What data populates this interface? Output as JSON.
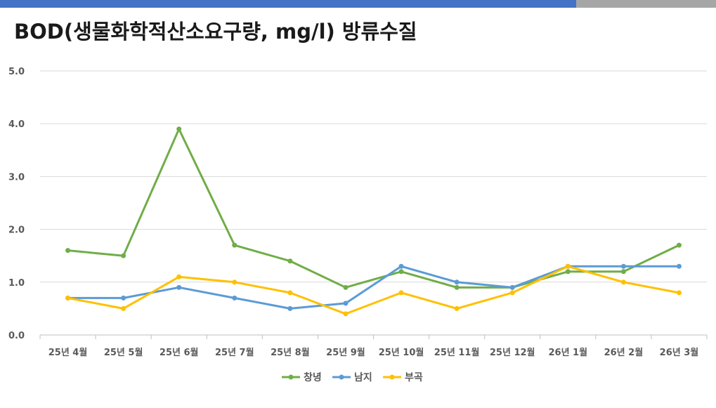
{
  "title": "BOD(생물화학적산소요구량, mg/l) 방류수질",
  "colors": {
    "topbar_blue": "#4472c4",
    "topbar_gray": "#a6a6a6"
  },
  "chart_data": {
    "type": "line",
    "title": "BOD(생물화학적산소요구량, mg/l) 방류수질",
    "xlabel": "",
    "ylabel": "",
    "categories": [
      "25년 4월",
      "25년 5월",
      "25년 6월",
      "25년 7월",
      "25년 8월",
      "25년 9월",
      "25년 10월",
      "25년 11월",
      "25년 12월",
      "26년 1월",
      "26년 2월",
      "26년 3월"
    ],
    "ylim": [
      0,
      5
    ],
    "yticks": [
      "0.0",
      "1.0",
      "2.0",
      "3.0",
      "4.0",
      "5.0"
    ],
    "grid": true,
    "legend_position": "bottom",
    "series": [
      {
        "name": "창녕",
        "color": "#70ad47",
        "values": [
          1.6,
          1.5,
          3.9,
          1.7,
          1.4,
          0.9,
          1.2,
          0.9,
          0.9,
          1.2,
          1.2,
          1.7
        ]
      },
      {
        "name": "남지",
        "color": "#5b9bd5",
        "values": [
          0.7,
          0.7,
          0.9,
          0.7,
          0.5,
          0.6,
          1.3,
          1.0,
          0.9,
          1.3,
          1.3,
          1.3
        ]
      },
      {
        "name": "부곡",
        "color": "#ffc000",
        "values": [
          0.7,
          0.5,
          1.1,
          1.0,
          0.8,
          0.4,
          0.8,
          0.5,
          0.8,
          1.3,
          1.0,
          0.8
        ]
      }
    ]
  }
}
